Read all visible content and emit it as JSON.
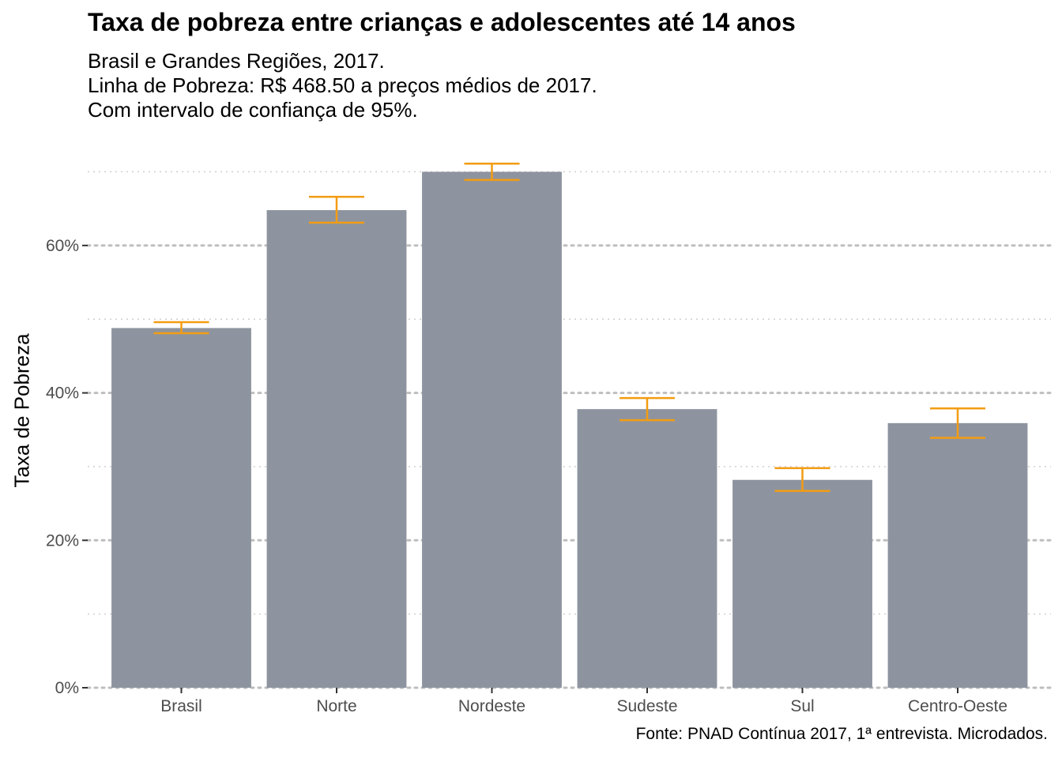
{
  "chart_data": {
    "type": "bar",
    "title": "Taxa de pobreza entre crianças e adolescentes até 14 anos",
    "subtitle": [
      "Brasil e Grandes Regiões, 2017.",
      "Linha de Pobreza: R$ 468.50 a preços médios de 2017.",
      "Com intervalo de confiança de 95%."
    ],
    "xlabel": "",
    "ylabel": "Taxa de Pobreza",
    "caption": "Fonte: PNAD Contínua 2017, 1ª entrevista. Microdados.",
    "categories": [
      "Brasil",
      "Norte",
      "Nordeste",
      "Sudeste",
      "Sul",
      "Centro-Oeste"
    ],
    "values": [
      48.8,
      64.8,
      70.0,
      37.8,
      28.2,
      35.9
    ],
    "ci_lower": [
      48.1,
      63.1,
      68.9,
      36.3,
      26.7,
      33.9
    ],
    "ci_upper": [
      49.6,
      66.6,
      71.1,
      39.3,
      29.8,
      37.9
    ],
    "ylim": [
      0,
      70
    ],
    "yticks": [
      0,
      20,
      40,
      60
    ],
    "ytick_labels": [
      "0%",
      "20%",
      "40%",
      "60%"
    ],
    "grid": true,
    "colors": {
      "bar": "#8e949f",
      "errorbar": "#f39c12",
      "grid_major": "#bebebe",
      "grid_minor": "#cfcfcf"
    }
  }
}
